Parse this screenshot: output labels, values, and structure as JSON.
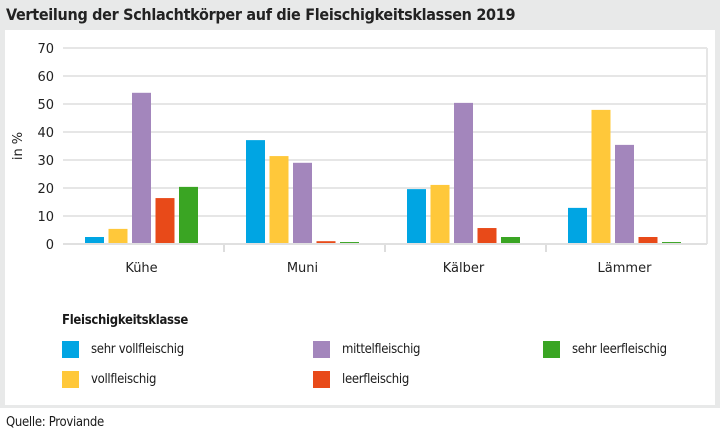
{
  "title": "Verteilung der Schlachtkörper auf die Fleischigkeitsklassen 2019",
  "source": "Quelle: Proviande",
  "chart_data": {
    "type": "bar",
    "title": "Verteilung der Schlachtkörper auf die Fleischigkeitsklassen 2019",
    "xlabel": "",
    "ylabel": "in %",
    "ylim": [
      0,
      70
    ],
    "yticks": [
      0,
      10,
      20,
      30,
      40,
      50,
      60,
      70
    ],
    "grid": true,
    "legend_title": "Fleischigkeitsklasse",
    "legend_position": "bottom",
    "categories": [
      "Kühe",
      "Muni",
      "Kälber",
      "Lämmer"
    ],
    "series": [
      {
        "name": "sehr vollfleischig",
        "color": "#00a5e3",
        "values": [
          2.5,
          37.1,
          19.6,
          12.9
        ]
      },
      {
        "name": "vollfleischig",
        "color": "#ffc83a",
        "values": [
          5.4,
          31.4,
          21.1,
          47.9
        ]
      },
      {
        "name": "mittelfleischig",
        "color": "#a386bc",
        "values": [
          54.0,
          29.0,
          50.4,
          35.4
        ]
      },
      {
        "name": "leerfleischig",
        "color": "#e84a19",
        "values": [
          16.4,
          1.0,
          5.7,
          2.5
        ]
      },
      {
        "name": "sehr leerfleischig",
        "color": "#3aa523",
        "values": [
          20.4,
          0.7,
          2.5,
          0.7
        ]
      }
    ]
  }
}
